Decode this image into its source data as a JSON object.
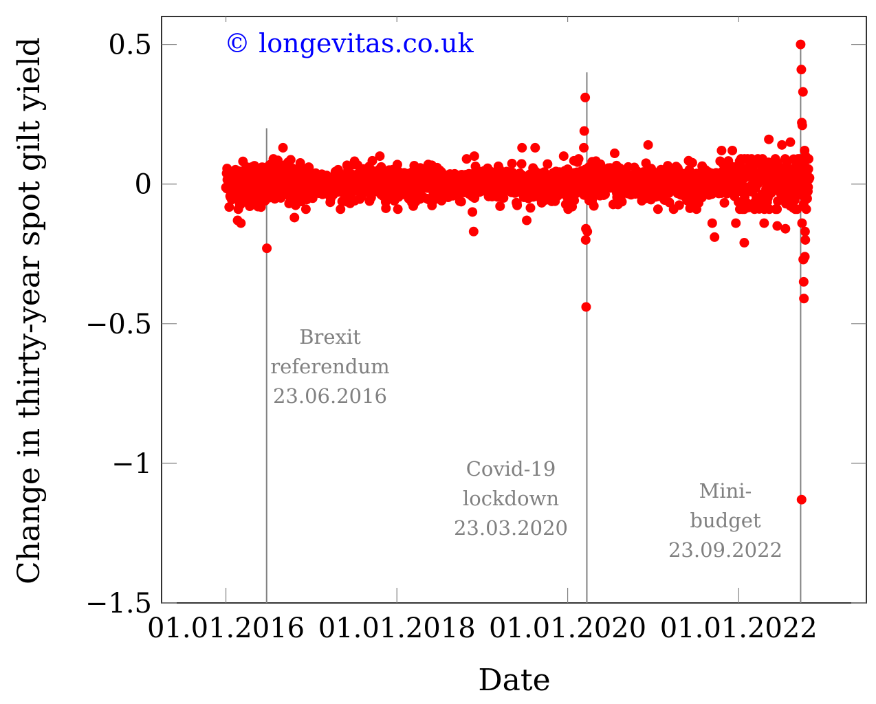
{
  "chart_data": {
    "type": "scatter",
    "title": "",
    "xlabel": "Date",
    "ylabel": "Change in thirty-year spot gilt yield",
    "watermark": "© longevitas.co.uk",
    "x_tick_labels": [
      "01.01.2016",
      "01.01.2018",
      "01.01.2020",
      "01.01.2022"
    ],
    "x_ticks": [
      "2016-01-01",
      "2018-01-01",
      "2020-01-01",
      "2022-01-01"
    ],
    "xlim": [
      "2015-04-01",
      "2023-07-01"
    ],
    "y_ticks": [
      0.5,
      0,
      -0.5,
      -1,
      -1.5
    ],
    "y_tick_labels": [
      "0.5",
      "0",
      "−0.5",
      "−1",
      "−1.5"
    ],
    "ylim": [
      -1.5,
      0.6
    ],
    "grid": false,
    "point_color": "#ff0000",
    "annotation_line_color": "#808080",
    "annotation_text_color": "#808080",
    "annotations": [
      {
        "date": "2016-06-23",
        "line_top": 0.2,
        "lines": [
          "Brexit",
          "referendum",
          "23.06.2016"
        ]
      },
      {
        "date": "2020-03-23",
        "line_top": 0.4,
        "lines": [
          "Covid-19",
          "lockdown",
          "23.03.2020"
        ]
      },
      {
        "date": "2022-09-23",
        "line_top": 0.5,
        "lines": [
          "Mini-",
          "budget",
          "23.09.2022"
        ]
      }
    ],
    "noise_band_by_year": [
      {
        "from": "2016-01-01",
        "to": "2016-12-31",
        "sd": 0.04
      },
      {
        "from": "2017-01-01",
        "to": "2019-12-31",
        "sd": 0.03
      },
      {
        "from": "2020-01-01",
        "to": "2021-12-31",
        "sd": 0.035
      },
      {
        "from": "2022-01-01",
        "to": "2022-10-31",
        "sd": 0.055
      }
    ],
    "outliers": [
      {
        "x": "2016-06-24",
        "y": -0.23
      },
      {
        "x": "2016-09-01",
        "y": 0.13
      },
      {
        "x": "2016-02-20",
        "y": -0.13
      },
      {
        "x": "2016-03-05",
        "y": -0.14
      },
      {
        "x": "2016-10-20",
        "y": -0.12
      },
      {
        "x": "2017-10-20",
        "y": 0.1
      },
      {
        "x": "2018-11-20",
        "y": -0.1
      },
      {
        "x": "2018-11-25",
        "y": -0.17
      },
      {
        "x": "2018-11-28",
        "y": 0.1
      },
      {
        "x": "2019-06-20",
        "y": 0.13
      },
      {
        "x": "2019-08-15",
        "y": 0.13
      },
      {
        "x": "2019-07-10",
        "y": -0.13
      },
      {
        "x": "2019-12-15",
        "y": 0.1
      },
      {
        "x": "2020-03-10",
        "y": 0.13
      },
      {
        "x": "2020-03-12",
        "y": 0.19
      },
      {
        "x": "2020-03-16",
        "y": 0.31
      },
      {
        "x": "2020-03-18",
        "y": -0.2
      },
      {
        "x": "2020-03-19",
        "y": -0.16
      },
      {
        "x": "2020-03-20",
        "y": -0.44
      },
      {
        "x": "2020-03-25",
        "y": -0.17
      },
      {
        "x": "2020-04-15",
        "y": 0.08
      },
      {
        "x": "2020-07-20",
        "y": 0.11
      },
      {
        "x": "2020-12-10",
        "y": 0.14
      },
      {
        "x": "2021-09-10",
        "y": -0.14
      },
      {
        "x": "2021-09-20",
        "y": -0.19
      },
      {
        "x": "2021-10-20",
        "y": 0.12
      },
      {
        "x": "2021-12-05",
        "y": 0.12
      },
      {
        "x": "2021-12-20",
        "y": -0.14
      },
      {
        "x": "2022-01-25",
        "y": -0.21
      },
      {
        "x": "2022-04-20",
        "y": -0.14
      },
      {
        "x": "2022-05-10",
        "y": 0.16
      },
      {
        "x": "2022-06-15",
        "y": -0.15
      },
      {
        "x": "2022-07-05",
        "y": 0.14
      },
      {
        "x": "2022-07-20",
        "y": -0.16
      },
      {
        "x": "2022-08-10",
        "y": 0.15
      },
      {
        "x": "2022-09-23",
        "y": 0.5
      },
      {
        "x": "2022-09-26",
        "y": 0.41
      },
      {
        "x": "2022-09-27",
        "y": -1.13
      },
      {
        "x": "2022-09-28",
        "y": 0.22
      },
      {
        "x": "2022-09-29",
        "y": -0.14
      },
      {
        "x": "2022-09-30",
        "y": 0.21
      },
      {
        "x": "2022-10-03",
        "y": 0.33
      },
      {
        "x": "2022-10-04",
        "y": -0.27
      },
      {
        "x": "2022-10-05",
        "y": -0.27
      },
      {
        "x": "2022-10-06",
        "y": -0.35
      },
      {
        "x": "2022-10-07",
        "y": -0.41
      },
      {
        "x": "2022-10-10",
        "y": 0.12
      },
      {
        "x": "2022-10-11",
        "y": -0.26
      },
      {
        "x": "2022-10-12",
        "y": -0.17
      },
      {
        "x": "2022-10-13",
        "y": -0.2
      },
      {
        "x": "2022-10-14",
        "y": 0.1
      },
      {
        "x": "2022-10-17",
        "y": -0.09
      },
      {
        "x": "2022-10-18",
        "y": 0.09
      },
      {
        "x": "2022-10-19",
        "y": -0.01
      },
      {
        "x": "2022-10-20",
        "y": 0.04
      }
    ]
  }
}
